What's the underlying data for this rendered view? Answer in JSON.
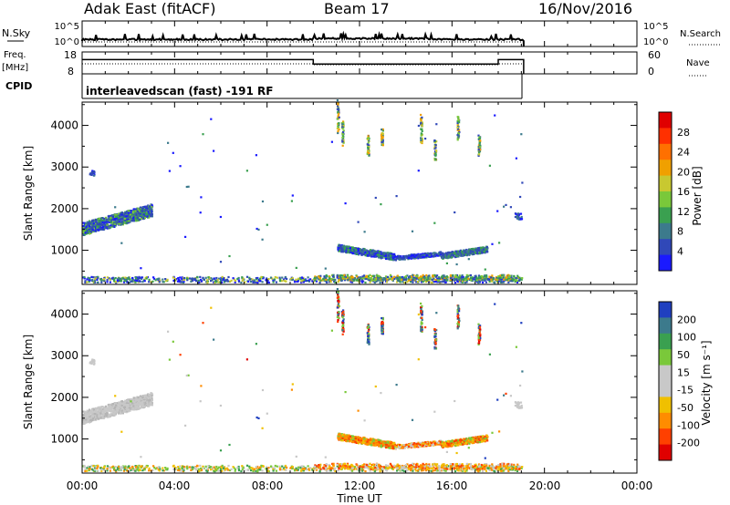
{
  "header": {
    "station": "Adak East (fitACF)",
    "beam": "Beam 17",
    "date": "16/Nov/2016"
  },
  "colors": {
    "scale_power": [
      "#1a1aff",
      "#3048b8",
      "#3c7a8c",
      "#3aa050",
      "#7ac83a",
      "#c8c830",
      "#f0a000",
      "#ff7000",
      "#ff3000",
      "#e00000"
    ],
    "scale_velocity": [
      "#e00000",
      "#ff4000",
      "#ff8c00",
      "#f0c000",
      "#c8c8c8",
      "#c8c8c8",
      "#7ac83a",
      "#3aa050",
      "#3c7a8c",
      "#2040c0"
    ]
  },
  "chart_data": [
    {
      "type": "line",
      "name_panel": "sky-noise-panel",
      "left_label": "N.Sky",
      "right_label": "N.Search",
      "yticks_left": [
        "10^5",
        "10^0"
      ],
      "yticks_right": [
        "10^5",
        "10^0"
      ],
      "xlim": [
        0,
        24
      ],
      "x_units": "hours UT"
    },
    {
      "type": "line",
      "name_panel": "frequency-panel",
      "left_label": "Freq.",
      "left_unit": "[MHz]",
      "right_label": "Nave",
      "yticks_left": [
        "18",
        "8"
      ],
      "yticks_right": [
        "60",
        "0"
      ],
      "ylim_left": [
        8,
        18
      ],
      "series": [
        {
          "name": "Freq.",
          "x": [
            0,
            10,
            10,
            18,
            18,
            19.1
          ],
          "values": [
            14.5,
            14.5,
            12.5,
            12.5,
            14.5,
            14.5
          ]
        }
      ]
    },
    {
      "type": "text",
      "name_panel": "cpid-panel",
      "left_label": "CPID",
      "text": "interleavedscan (fast) -191 RF"
    },
    {
      "type": "heatmap",
      "name_panel": "power-panel",
      "ylabel": "Slant Range [km]",
      "yticks": [
        "1000",
        "2000",
        "3000",
        "4000"
      ],
      "yvals": [
        1000,
        2000,
        3000,
        4000
      ],
      "ylim": [
        180,
        4560
      ],
      "xlim": [
        0,
        24
      ],
      "colorbar_label": "Power [dB]",
      "colorbar_ticks": [
        "4",
        "8",
        "12",
        "16",
        "20",
        "24",
        "28"
      ]
    },
    {
      "type": "heatmap",
      "name_panel": "velocity-panel",
      "ylabel": "Slant Range [km]",
      "yticks": [
        "1000",
        "2000",
        "3000",
        "4000"
      ],
      "yvals": [
        1000,
        2000,
        3000,
        4000
      ],
      "ylim": [
        180,
        4560
      ],
      "xlim": [
        0,
        24
      ],
      "xlabel": "Time UT",
      "xticks": [
        "00:00",
        "04:00",
        "08:00",
        "12:00",
        "16:00",
        "20:00",
        "00:00"
      ],
      "colorbar_label": "Velocity [m s⁻¹]",
      "colorbar_ticks": [
        "200",
        "100",
        "50",
        "15",
        "-15",
        "-50",
        "-100",
        "-200"
      ]
    }
  ]
}
